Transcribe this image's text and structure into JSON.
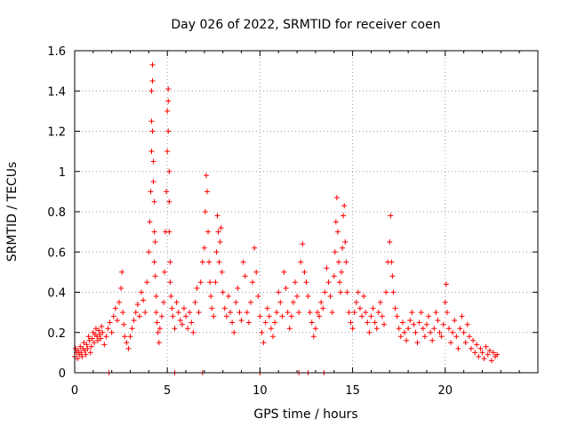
{
  "chart_data": {
    "type": "scatter",
    "title": "Day 026 of 2022, SRMTID for receiver coen",
    "xlabel": "GPS time / hours",
    "ylabel": "SRMTID / TECUs",
    "xlim": [
      0,
      25
    ],
    "ylim": [
      0,
      1.6
    ],
    "xticks": [
      0,
      5,
      10,
      15,
      20
    ],
    "yticks": [
      0,
      0.2,
      0.4,
      0.6,
      0.8,
      1,
      1.2,
      1.4,
      1.6
    ],
    "xtick_labels": [
      "0",
      "5",
      "10",
      "15",
      "20"
    ],
    "ytick_labels": [
      "0",
      "0.2",
      "0.4",
      "0.6",
      "0.8",
      "1",
      "1.2",
      "1.4",
      "1.6"
    ],
    "grid": true,
    "marker": "+",
    "color": "#ff0000",
    "series": [
      {
        "name": "SRMTID",
        "x": [
          0.0,
          0.05,
          0.1,
          0.15,
          0.2,
          0.25,
          0.3,
          0.35,
          0.4,
          0.45,
          0.5,
          0.55,
          0.6,
          0.65,
          0.7,
          0.75,
          0.8,
          0.85,
          0.9,
          0.95,
          1.0,
          1.05,
          1.1,
          1.15,
          1.2,
          1.25,
          1.3,
          1.35,
          1.4,
          1.45,
          1.5,
          1.6,
          1.7,
          1.8,
          1.9,
          2.0,
          2.1,
          2.2,
          2.3,
          2.4,
          2.5,
          2.55,
          2.6,
          2.65,
          2.7,
          2.8,
          2.9,
          3.0,
          3.1,
          3.2,
          3.3,
          3.4,
          3.5,
          3.6,
          3.7,
          3.8,
          3.9,
          4.0,
          4.05,
          4.1,
          4.15,
          4.15,
          4.15,
          4.2,
          4.2,
          4.2,
          4.25,
          4.25,
          4.3,
          4.3,
          4.3,
          4.35,
          4.35,
          4.4,
          4.4,
          4.45,
          4.5,
          4.55,
          4.6,
          4.7,
          4.8,
          4.85,
          4.9,
          4.95,
          5.0,
          5.0,
          5.05,
          5.05,
          5.05,
          5.1,
          5.1,
          5.1,
          5.15,
          5.15,
          5.2,
          5.25,
          5.3,
          5.4,
          5.5,
          5.6,
          5.7,
          5.8,
          5.9,
          6.0,
          6.1,
          6.2,
          6.3,
          6.4,
          6.5,
          6.6,
          6.7,
          6.8,
          6.9,
          7.0,
          7.05,
          7.1,
          7.15,
          7.2,
          7.25,
          7.3,
          7.35,
          7.4,
          7.5,
          7.6,
          7.65,
          7.7,
          7.75,
          7.8,
          7.85,
          7.9,
          7.95,
          8.0,
          8.1,
          8.2,
          8.3,
          8.4,
          8.5,
          8.6,
          8.7,
          8.8,
          8.9,
          9.0,
          9.1,
          9.2,
          9.3,
          9.4,
          9.5,
          9.6,
          9.7,
          9.8,
          9.9,
          10.0,
          10.1,
          10.2,
          10.3,
          10.4,
          10.5,
          10.6,
          10.7,
          10.8,
          10.9,
          11.0,
          11.1,
          11.2,
          11.3,
          11.4,
          11.5,
          11.6,
          11.7,
          11.8,
          11.9,
          12.0,
          12.1,
          12.2,
          12.3,
          12.4,
          12.5,
          12.6,
          12.7,
          12.8,
          12.9,
          13.0,
          13.1,
          13.2,
          13.3,
          13.4,
          13.5,
          13.6,
          13.7,
          13.8,
          13.9,
          14.0,
          14.05,
          14.1,
          14.15,
          14.2,
          14.25,
          14.3,
          14.35,
          14.4,
          14.45,
          14.5,
          14.55,
          14.6,
          14.65,
          14.7,
          14.8,
          14.9,
          15.0,
          15.1,
          15.2,
          15.3,
          15.4,
          15.5,
          15.6,
          15.7,
          15.8,
          15.9,
          16.0,
          16.1,
          16.2,
          16.3,
          16.4,
          16.5,
          16.6,
          16.7,
          16.8,
          16.9,
          17.0,
          17.05,
          17.1,
          17.15,
          17.2,
          17.3,
          17.4,
          17.5,
          17.6,
          17.7,
          17.8,
          17.9,
          18.0,
          18.1,
          18.2,
          18.3,
          18.4,
          18.5,
          18.6,
          18.7,
          18.8,
          18.9,
          19.0,
          19.1,
          19.2,
          19.3,
          19.4,
          19.5,
          19.6,
          19.7,
          19.8,
          19.9,
          20.0,
          20.05,
          20.1,
          20.2,
          20.3,
          20.4,
          20.5,
          20.6,
          20.7,
          20.8,
          20.9,
          21.0,
          21.1,
          21.2,
          21.3,
          21.4,
          21.5,
          21.6,
          21.7,
          21.8,
          21.9,
          22.0,
          22.1,
          22.2,
          22.3,
          22.4,
          22.5,
          22.6,
          22.7,
          22.8,
          1.85,
          5.4,
          6.9,
          10.0,
          12.1,
          12.6,
          13.45
        ],
        "y": [
          0.08,
          0.12,
          0.1,
          0.07,
          0.11,
          0.09,
          0.13,
          0.1,
          0.08,
          0.12,
          0.15,
          0.11,
          0.09,
          0.14,
          0.12,
          0.18,
          0.16,
          0.1,
          0.13,
          0.17,
          0.2,
          0.15,
          0.19,
          0.22,
          0.18,
          0.16,
          0.21,
          0.19,
          0.17,
          0.23,
          0.2,
          0.14,
          0.18,
          0.22,
          0.25,
          0.2,
          0.28,
          0.32,
          0.26,
          0.35,
          0.42,
          0.5,
          0.3,
          0.24,
          0.18,
          0.15,
          0.12,
          0.18,
          0.22,
          0.26,
          0.3,
          0.34,
          0.28,
          0.4,
          0.36,
          0.3,
          0.45,
          0.6,
          0.75,
          0.9,
          1.1,
          1.25,
          1.4,
          1.53,
          1.45,
          1.2,
          0.95,
          1.05,
          0.85,
          0.7,
          0.55,
          0.65,
          0.48,
          0.38,
          0.3,
          0.25,
          0.2,
          0.15,
          0.22,
          0.28,
          0.35,
          0.5,
          0.7,
          0.9,
          1.1,
          1.3,
          1.41,
          1.35,
          1.2,
          1.0,
          0.85,
          0.7,
          0.55,
          0.45,
          0.38,
          0.32,
          0.28,
          0.22,
          0.35,
          0.3,
          0.26,
          0.24,
          0.32,
          0.28,
          0.22,
          0.3,
          0.25,
          0.2,
          0.35,
          0.42,
          0.3,
          0.45,
          0.55,
          0.62,
          0.8,
          0.98,
          0.9,
          0.7,
          0.55,
          0.45,
          0.38,
          0.32,
          0.28,
          0.45,
          0.6,
          0.78,
          0.7,
          0.55,
          0.65,
          0.72,
          0.5,
          0.4,
          0.32,
          0.28,
          0.38,
          0.3,
          0.25,
          0.2,
          0.35,
          0.42,
          0.3,
          0.26,
          0.55,
          0.48,
          0.3,
          0.25,
          0.35,
          0.45,
          0.62,
          0.5,
          0.38,
          0.28,
          0.2,
          0.15,
          0.25,
          0.32,
          0.28,
          0.22,
          0.18,
          0.25,
          0.3,
          0.4,
          0.35,
          0.28,
          0.5,
          0.42,
          0.3,
          0.22,
          0.28,
          0.35,
          0.45,
          0.38,
          0.3,
          0.55,
          0.64,
          0.5,
          0.45,
          0.38,
          0.3,
          0.25,
          0.18,
          0.22,
          0.3,
          0.28,
          0.35,
          0.32,
          0.4,
          0.52,
          0.45,
          0.38,
          0.3,
          0.48,
          0.6,
          0.75,
          0.87,
          0.7,
          0.55,
          0.45,
          0.4,
          0.5,
          0.62,
          0.78,
          0.83,
          0.65,
          0.55,
          0.4,
          0.3,
          0.25,
          0.22,
          0.3,
          0.35,
          0.4,
          0.32,
          0.28,
          0.38,
          0.3,
          0.25,
          0.2,
          0.28,
          0.32,
          0.25,
          0.22,
          0.3,
          0.35,
          0.28,
          0.24,
          0.4,
          0.55,
          0.65,
          0.78,
          0.55,
          0.48,
          0.4,
          0.32,
          0.28,
          0.22,
          0.18,
          0.25,
          0.2,
          0.16,
          0.22,
          0.26,
          0.3,
          0.24,
          0.2,
          0.15,
          0.25,
          0.3,
          0.22,
          0.18,
          0.24,
          0.28,
          0.2,
          0.16,
          0.22,
          0.3,
          0.26,
          0.2,
          0.18,
          0.24,
          0.35,
          0.44,
          0.3,
          0.22,
          0.15,
          0.2,
          0.26,
          0.18,
          0.12,
          0.22,
          0.28,
          0.2,
          0.15,
          0.24,
          0.18,
          0.12,
          0.16,
          0.1,
          0.14,
          0.08,
          0.12,
          0.1,
          0.07,
          0.13,
          0.09,
          0.11,
          0.06,
          0.1,
          0.08,
          0.09,
          0,
          0,
          0,
          0,
          0,
          0,
          0
        ]
      }
    ]
  }
}
